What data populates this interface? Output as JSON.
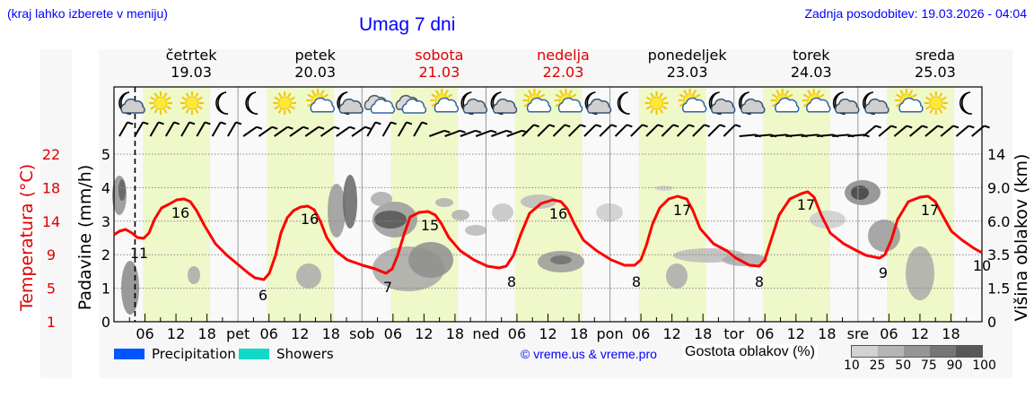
{
  "header": {
    "hint": "(kraj lahko izberete v meniju)",
    "title": "Umag 7 dni",
    "updated": "Zadnja posodobitev: 19.03.2026 - 04:04"
  },
  "days": [
    {
      "name": "četrtek",
      "date": "19.03",
      "weekend": false,
      "short": ""
    },
    {
      "name": "petek",
      "date": "20.03",
      "weekend": false,
      "short": "pet"
    },
    {
      "name": "sobota",
      "date": "21.03",
      "weekend": true,
      "short": "sob"
    },
    {
      "name": "nedelja",
      "date": "22.03",
      "weekend": true,
      "short": "ned"
    },
    {
      "name": "ponedeljek",
      "date": "23.03",
      "weekend": false,
      "short": "pon"
    },
    {
      "name": "torek",
      "date": "24.03",
      "weekend": false,
      "short": "tor"
    },
    {
      "name": "sreda",
      "date": "25.03",
      "weekend": false,
      "short": "sre"
    }
  ],
  "weather_icons": [
    [
      "moon-cloud",
      "sun",
      "sun",
      "moon"
    ],
    [
      "moon",
      "sun",
      "sun-cloud",
      "moon-cloud"
    ],
    [
      "clouds",
      "clouds",
      "sun-cloud",
      "moon-cloud"
    ],
    [
      "moon-cloud",
      "sun-cloud",
      "sun-cloud",
      "moon-cloud"
    ],
    [
      "moon",
      "sun",
      "sun-cloud",
      "moon-cloud"
    ],
    [
      "moon-cloud",
      "sun-cloud",
      "sun-cloud",
      "moon-cloud"
    ],
    [
      "moon-cloud",
      "sun-cloud",
      "sun",
      "moon"
    ]
  ],
  "axes": {
    "left_outer_label": "Temperatura (°C)",
    "left_inner_label": "Padavine (mm/h)",
    "right_label": "Višina oblakov (km)",
    "precip_ticks": [
      "0",
      "1",
      "2",
      "3",
      "4",
      "5"
    ],
    "temp_ticks": [
      "1",
      "5",
      "9",
      "14",
      "18",
      "22"
    ],
    "cloud_height_ticks": [
      "0",
      "1.5",
      "3.5",
      "6.0",
      "9.0",
      "14"
    ],
    "hour_ticks": [
      "06",
      "12",
      "18"
    ]
  },
  "legend": {
    "precipitation": "Precipitation",
    "showers": "Showers",
    "precipitation_color": "#0055ff",
    "showers_color": "#11d9c7",
    "copyright": "© vreme.us & vreme.pro",
    "density_label": "Gostota oblakov (%)",
    "density_ticks": [
      "10",
      "25",
      "50",
      "75",
      "90",
      "100"
    ]
  },
  "chart_data": {
    "type": "line",
    "title": "Umag 7 dni",
    "xlabel": "",
    "ylabel": "Temperatura (°C)",
    "ylim": [
      1,
      22
    ],
    "x_range": "19.03 00:00 – 25.03 24:00",
    "series": [
      {
        "name": "Temperatura (°C)",
        "color": "#ff0000",
        "extrema_labels": [
          {
            "day": "19.03",
            "time": "~05",
            "value": 11
          },
          {
            "day": "19.03",
            "time": "~13",
            "value": 16
          },
          {
            "day": "20.03",
            "time": "~05",
            "value": 6
          },
          {
            "day": "20.03",
            "time": "~13",
            "value": 16
          },
          {
            "day": "21.03",
            "time": "~05",
            "value": 7
          },
          {
            "day": "21.03",
            "time": "~14",
            "value": 15
          },
          {
            "day": "22.03",
            "time": "~05",
            "value": 8
          },
          {
            "day": "22.03",
            "time": "~14",
            "value": 16
          },
          {
            "day": "23.03",
            "time": "~05",
            "value": 8
          },
          {
            "day": "23.03",
            "time": "~14",
            "value": 17
          },
          {
            "day": "24.03",
            "time": "~05",
            "value": 8
          },
          {
            "day": "24.03",
            "time": "~14",
            "value": 17
          },
          {
            "day": "25.03",
            "time": "~05",
            "value": 9
          },
          {
            "day": "25.03",
            "time": "~14",
            "value": 17
          },
          {
            "day": "25.03",
            "time": "~24",
            "value": 10
          }
        ]
      }
    ],
    "precipitation_ylim": [
      0,
      5
    ],
    "cloud_height_ticks_km": [
      0,
      1.5,
      3.5,
      6.0,
      9.0,
      14
    ],
    "current_time_marker": "19.03 04:04",
    "grid": true
  }
}
